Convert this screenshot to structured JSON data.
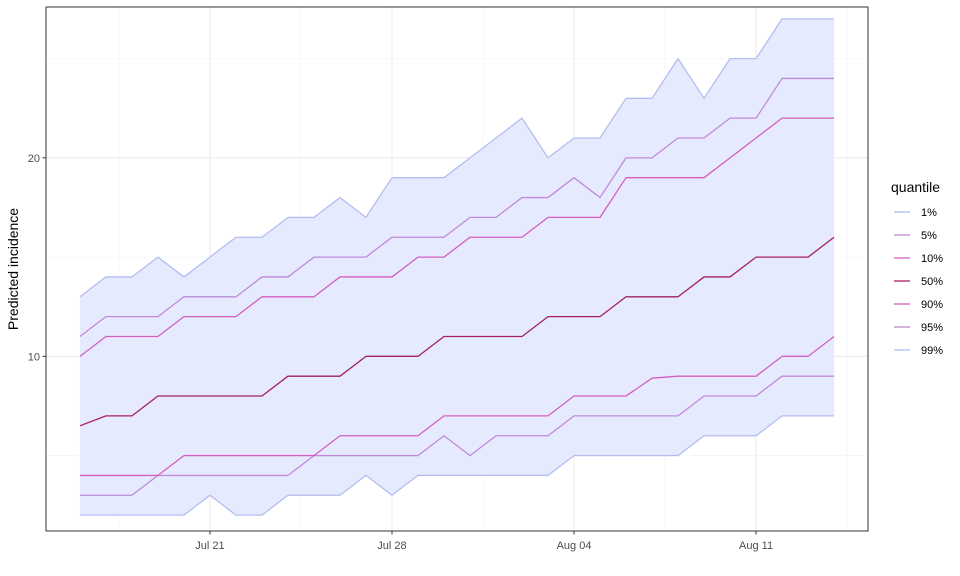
{
  "chart_data": {
    "type": "line",
    "title": "",
    "xlabel": "",
    "ylabel": "Predicted incidence",
    "x_start_date": "2020-07-16",
    "x_tick_labels": [
      "Jul 21",
      "Jul 28",
      "Aug 04",
      "Aug 11"
    ],
    "y_tick_labels": [
      "10",
      "20"
    ],
    "ylim": [
      1.2,
      27.6
    ],
    "grid": true,
    "legend_position": "right",
    "legend_title": "quantile",
    "band": {
      "lower_series": "1%",
      "upper_series": "99%",
      "fill": "#e6eaff",
      "stroke": "#b4bdf0"
    },
    "x": [
      "2020-07-16",
      "2020-07-17",
      "2020-07-18",
      "2020-07-19",
      "2020-07-20",
      "2020-07-21",
      "2020-07-22",
      "2020-07-23",
      "2020-07-24",
      "2020-07-25",
      "2020-07-26",
      "2020-07-27",
      "2020-07-28",
      "2020-07-29",
      "2020-07-30",
      "2020-07-31",
      "2020-08-01",
      "2020-08-02",
      "2020-08-03",
      "2020-08-04",
      "2020-08-05",
      "2020-08-06",
      "2020-08-07",
      "2020-08-08",
      "2020-08-09",
      "2020-08-10",
      "2020-08-11",
      "2020-08-12",
      "2020-08-13",
      "2020-08-14"
    ],
    "series": [
      {
        "name": "1%",
        "color": "#b4bdf0",
        "values": [
          2,
          2,
          2,
          2,
          2,
          3,
          2,
          2,
          3,
          3,
          3,
          4,
          3,
          4,
          4,
          4,
          4,
          4,
          4,
          5,
          5,
          5,
          5,
          5,
          6,
          6,
          6,
          7,
          7,
          7
        ]
      },
      {
        "name": "5%",
        "color": "#c08ad8",
        "values": [
          3,
          3,
          3,
          4,
          4,
          4,
          4,
          4,
          4,
          5,
          5,
          5,
          5,
          5,
          6,
          5,
          6,
          6,
          6,
          7,
          7,
          7,
          7,
          7,
          8,
          8,
          8,
          9,
          9,
          9
        ]
      },
      {
        "name": "10%",
        "color": "#d45fc0",
        "values": [
          4,
          4,
          4,
          4,
          5,
          5,
          5,
          5,
          5,
          5,
          6,
          6,
          6,
          6,
          7,
          7,
          7,
          7,
          7,
          8,
          8,
          8,
          8.9,
          9,
          9,
          9,
          9,
          10,
          10,
          11
        ]
      },
      {
        "name": "50%",
        "color": "#a32063",
        "values": [
          6.5,
          7,
          7,
          8,
          8,
          8,
          8,
          8,
          9,
          9,
          9,
          10,
          10,
          10,
          11,
          11,
          11,
          11,
          12,
          12,
          12,
          13,
          13,
          13,
          14,
          14,
          15,
          15,
          15,
          16
        ]
      },
      {
        "name": "90%",
        "color": "#d45fc0",
        "values": [
          10,
          11,
          11,
          11,
          12,
          12,
          12,
          13,
          13,
          13,
          14,
          14,
          14,
          15,
          15,
          16,
          16,
          16,
          17,
          17,
          17,
          19,
          19,
          19,
          19,
          20,
          21,
          22,
          22,
          22
        ]
      },
      {
        "name": "95%",
        "color": "#c08ad8",
        "values": [
          11,
          12,
          12,
          12,
          13,
          13,
          13,
          14,
          14,
          15,
          15,
          15,
          16,
          16,
          16,
          17,
          17,
          18,
          18,
          19,
          18,
          20,
          20,
          21,
          21,
          22,
          22,
          24,
          24,
          24
        ]
      },
      {
        "name": "99%",
        "color": "#b4bdf0",
        "values": [
          13,
          14,
          14,
          15,
          14,
          15,
          16,
          16,
          17,
          17,
          18,
          17,
          19,
          19,
          19,
          20,
          21,
          22,
          20,
          21,
          21,
          23,
          23,
          25,
          23,
          25,
          25,
          27,
          27,
          27
        ]
      }
    ]
  }
}
